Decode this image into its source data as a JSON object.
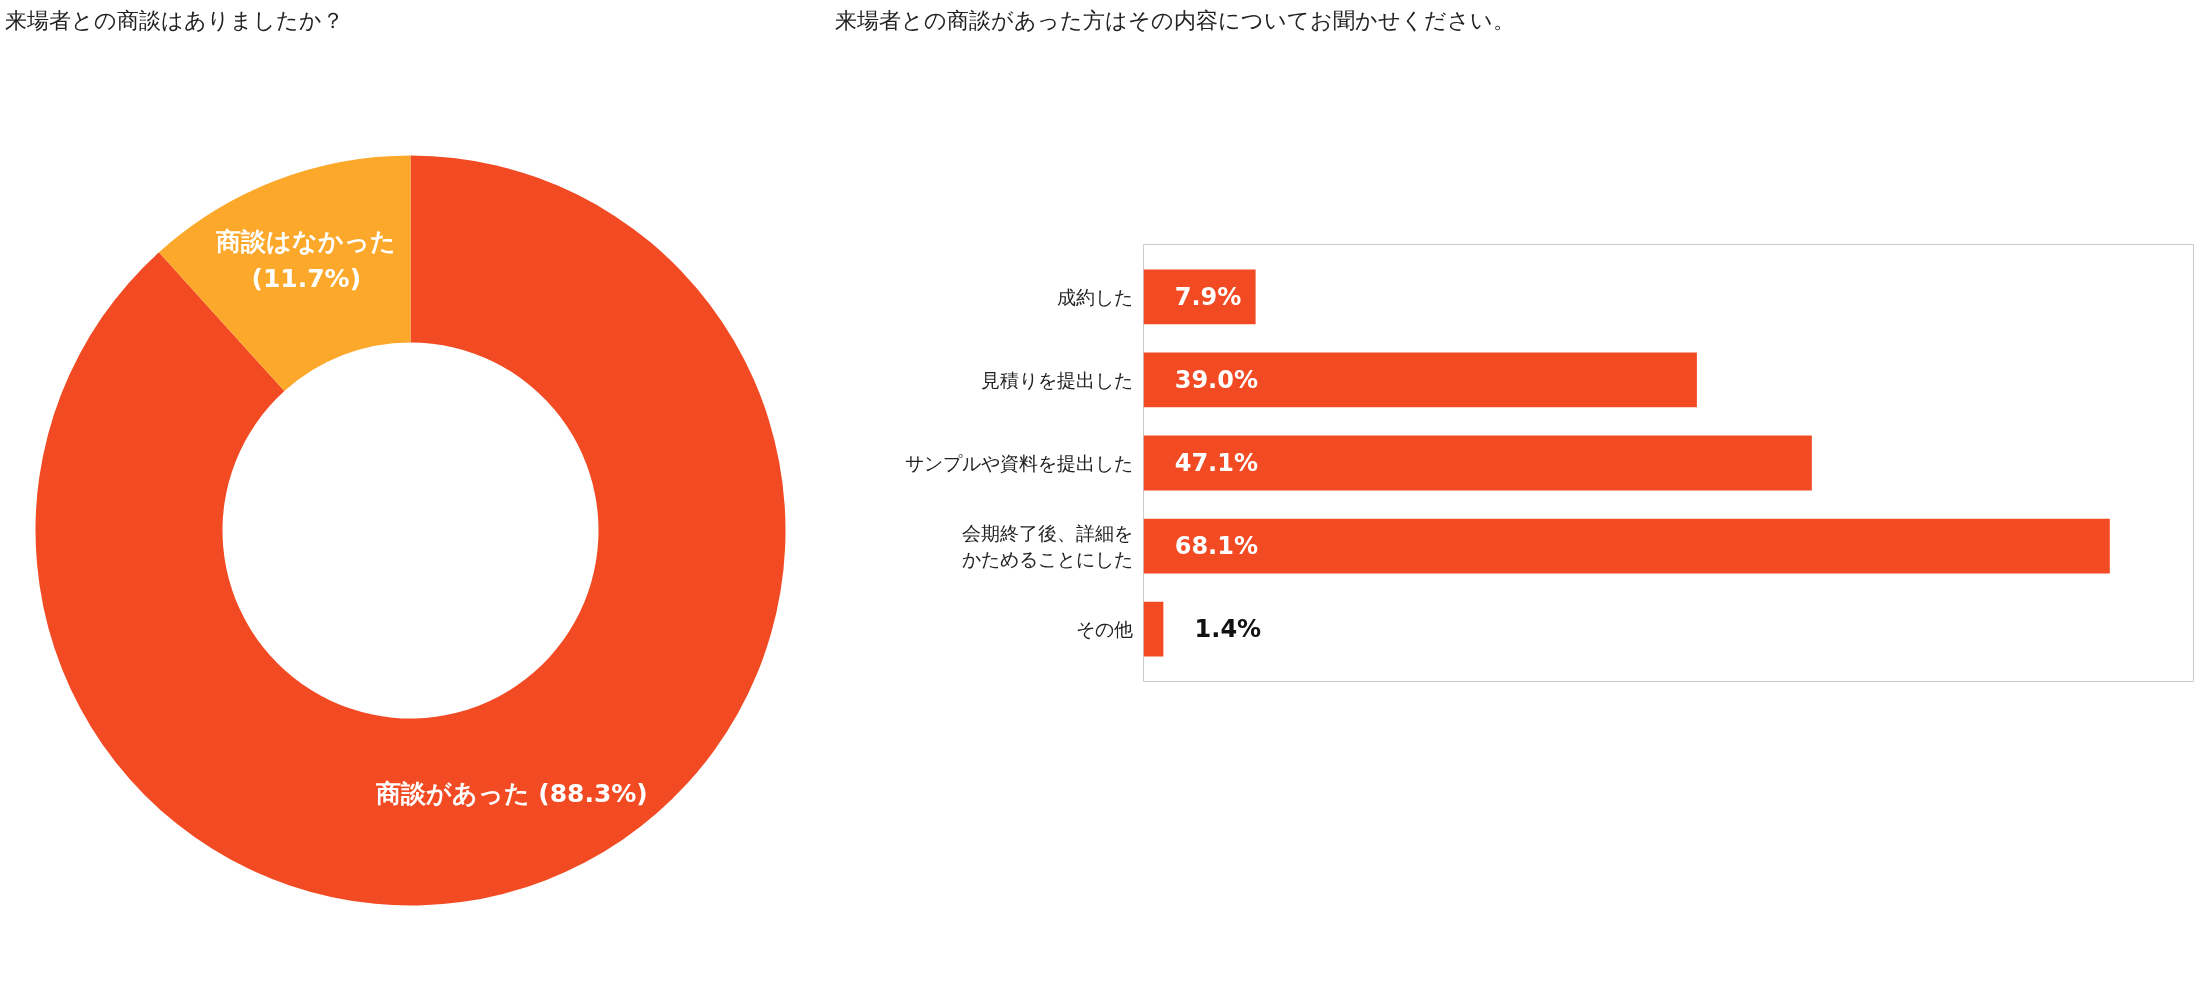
{
  "chart_data": [
    {
      "type": "donut",
      "title": "来場者との商談はありましたか？",
      "categories": [
        "商談があった",
        "商談はなかった"
      ],
      "values": [
        88.3,
        11.7
      ],
      "colors": [
        "#f24a22",
        "#fca82b"
      ],
      "value_labels": [
        "(88.3%)",
        "(11.7%)"
      ]
    },
    {
      "type": "bar",
      "orientation": "horizontal",
      "title": "来場者との商談があった方はその内容についてお聞かせください。",
      "categories": [
        "成約した",
        "見積りを提出した",
        "サンプルや資料を提出した",
        "会期終了後、詳細をかためることにした",
        "その他"
      ],
      "values": [
        7.9,
        39.0,
        47.1,
        68.1,
        1.4
      ],
      "color": "#f24a22",
      "value_labels": [
        "7.9%",
        "39.0%",
        "47.1%",
        "68.1%",
        "1.4%"
      ],
      "xlim": [
        0,
        74
      ],
      "tick_labels": "y",
      "grid": false
    }
  ]
}
